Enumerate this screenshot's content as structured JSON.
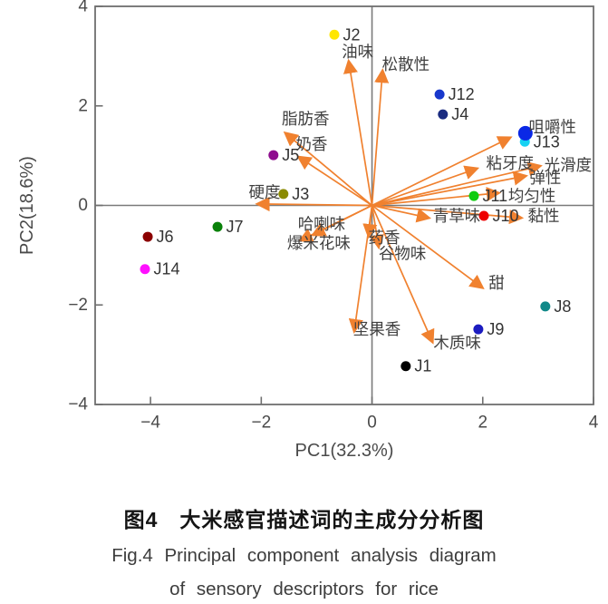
{
  "figure_caption": {
    "title_zh": "图4　大米感官描述词的主成分分析图",
    "title_en_line1": "Fig.4  Principal component analysis diagram",
    "title_en_line2": "of sensory descriptors for rice"
  },
  "chart_data": {
    "type": "scatter",
    "subtype": "pca-biplot",
    "title": "",
    "xlabel": "PC1(32.3%)",
    "ylabel": "PC2(18.6%)",
    "xlim": [
      -5,
      4
    ],
    "ylim": [
      -4,
      4
    ],
    "xticks": [
      -4,
      -2,
      0,
      2,
      4
    ],
    "xtick_labels": [
      "−4",
      "−2",
      "0",
      "2",
      "4"
    ],
    "yticks": [
      -4,
      -2,
      0,
      2,
      4
    ],
    "ytick_labels": [
      "−4",
      "−2",
      "0",
      "2",
      "4"
    ],
    "grid": false,
    "legend": "none",
    "axis_color": "#6f6f6f",
    "tick_text_color": "#4a4a4a",
    "arrow_color": "#f0812f",
    "sample_label_color": "#333333",
    "loading_label_color": "#404040",
    "samples": [
      {
        "id": "J1",
        "x": 0.61,
        "y": -3.23,
        "color": "#000000"
      },
      {
        "id": "J2",
        "x": -0.68,
        "y": 3.43,
        "color": "#ffe600"
      },
      {
        "id": "J3",
        "x": -1.6,
        "y": 0.23,
        "color": "#8a8a00"
      },
      {
        "id": "J4",
        "x": 1.28,
        "y": 1.83,
        "color": "#1a2b80"
      },
      {
        "id": "J5",
        "x": -1.78,
        "y": 1.01,
        "color": "#8e0d8e"
      },
      {
        "id": "J6",
        "x": -4.05,
        "y": -0.63,
        "color": "#8b0000"
      },
      {
        "id": "J7",
        "x": -2.79,
        "y": -0.43,
        "color": "#098109"
      },
      {
        "id": "J8",
        "x": 3.13,
        "y": -2.03,
        "color": "#108888"
      },
      {
        "id": "J9",
        "x": 1.92,
        "y": -2.49,
        "color": "#1c1cc0"
      },
      {
        "id": "J10",
        "x": 2.02,
        "y": -0.21,
        "color": "#ee0000"
      },
      {
        "id": "J11",
        "x": 1.84,
        "y": 0.19,
        "color": "#10cc10"
      },
      {
        "id": "J12",
        "x": 1.22,
        "y": 2.23,
        "color": "#1838cc"
      },
      {
        "id": "J13",
        "x": 2.76,
        "y": 1.28,
        "color": "#16d2f2"
      },
      {
        "id": "J14",
        "x": -4.1,
        "y": -1.28,
        "color": "#ff10ff"
      },
      {
        "id": "",
        "x": 2.77,
        "y": 1.45,
        "color": "#0a28e6",
        "r": 8
      }
    ],
    "loadings": [
      {
        "name": "油味",
        "x": -0.42,
        "y": 2.89,
        "label_x": -0.26,
        "label_y": 3.09
      },
      {
        "name": "松散性",
        "x": 0.19,
        "y": 2.7,
        "label_x": 0.61,
        "label_y": 2.83
      },
      {
        "name": "脂肪香",
        "x": -1.56,
        "y": 1.45,
        "label_x": -1.2,
        "label_y": 1.74
      },
      {
        "name": "奶香",
        "x": -1.32,
        "y": 0.97,
        "label_x": -1.09,
        "label_y": 1.23
      },
      {
        "name": "硬度",
        "x": -2.06,
        "y": 0.03,
        "label_x": -1.94,
        "label_y": 0.26
      },
      {
        "name": "哈喇味",
        "x": -1.06,
        "y": -0.59,
        "label_x": -0.91,
        "label_y": -0.37
      },
      {
        "name": "爆米花味",
        "x": -1.29,
        "y": -0.7,
        "label_x": -0.96,
        "label_y": -0.76
      },
      {
        "name": "药香",
        "x": -0.06,
        "y": -0.61,
        "label_x": 0.22,
        "label_y": -0.65
      },
      {
        "name": "谷物味",
        "x": 0.12,
        "y": -0.83,
        "label_x": 0.55,
        "label_y": -0.97
      },
      {
        "name": "坚果香",
        "x": -0.32,
        "y": -2.52,
        "label_x": 0.09,
        "label_y": -2.49
      },
      {
        "name": "木质味",
        "x": 1.09,
        "y": -2.74,
        "label_x": 1.54,
        "label_y": -2.76
      },
      {
        "name": "甜",
        "x": 1.99,
        "y": -1.65,
        "label_x": 2.25,
        "label_y": -1.56
      },
      {
        "name": "青草味",
        "x": 1.02,
        "y": -0.25,
        "label_x": 1.53,
        "label_y": -0.21
      },
      {
        "name": "黏性",
        "x": 2.69,
        "y": -0.25,
        "label_x": 3.1,
        "label_y": -0.21
      },
      {
        "name": "均匀性",
        "x": 2.28,
        "y": 0.25,
        "label_x": 2.89,
        "label_y": 0.19
      },
      {
        "name": "弹性",
        "x": 2.77,
        "y": 0.59,
        "label_x": 3.13,
        "label_y": 0.56
      },
      {
        "name": "光滑度",
        "x": 3.03,
        "y": 0.79,
        "label_x": 3.54,
        "label_y": 0.81
      },
      {
        "name": "粘牙度",
        "x": 1.89,
        "y": 0.74,
        "label_x": 2.49,
        "label_y": 0.85
      },
      {
        "name": "咀嚼性",
        "x": 2.49,
        "y": 1.36,
        "label_x": 3.26,
        "label_y": 1.58
      }
    ]
  }
}
